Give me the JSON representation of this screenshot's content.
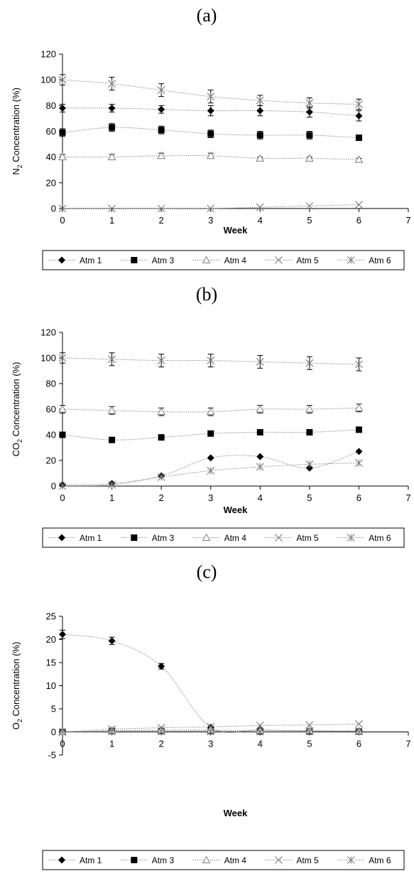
{
  "chart_data": [
    {
      "type": "line",
      "title": "(a)",
      "xlabel": "Week",
      "ylabel_parts": [
        "N",
        "2",
        " Concentration (%)"
      ],
      "xlim": [
        0,
        7
      ],
      "ylim": [
        0,
        120
      ],
      "xticks": [
        0,
        1,
        2,
        3,
        4,
        5,
        6,
        7
      ],
      "yticks": [
        0,
        20,
        40,
        60,
        80,
        100,
        120
      ],
      "x": [
        0,
        1,
        2,
        3,
        4,
        5,
        6
      ],
      "legend_position": "bottom",
      "series": [
        {
          "name": "Atm 1",
          "marker": "diamond",
          "color": "#000000",
          "values": [
            78,
            78,
            77,
            76,
            76,
            75,
            72
          ],
          "errors": [
            3,
            3,
            3,
            4,
            4,
            4,
            4
          ]
        },
        {
          "name": "Atm 3",
          "marker": "square",
          "color": "#000000",
          "values": [
            59,
            63,
            61,
            58,
            57,
            57,
            55
          ],
          "errors": [
            3,
            3,
            3,
            3,
            3,
            3,
            2
          ]
        },
        {
          "name": "Atm 4",
          "marker": "triangle",
          "color": "#7f7f7f",
          "values": [
            40,
            40,
            41,
            41,
            39,
            39,
            38
          ],
          "errors": [
            2,
            2,
            2,
            2,
            1,
            1,
            1
          ]
        },
        {
          "name": "Atm 5",
          "marker": "x",
          "color": "#7f7f7f",
          "values": [
            0,
            0,
            0,
            0,
            1,
            2,
            3
          ],
          "errors": [
            0,
            0,
            0,
            0,
            0,
            0,
            0
          ]
        },
        {
          "name": "Atm 6",
          "marker": "star",
          "color": "#7f7f7f",
          "values": [
            100,
            97,
            92,
            87,
            84,
            82,
            81
          ],
          "errors": [
            4,
            5,
            5,
            5,
            4,
            4,
            4
          ]
        }
      ]
    },
    {
      "type": "line",
      "title": "(b)",
      "xlabel": "Week",
      "ylabel_parts": [
        "CO",
        "2",
        " Concentration (%)"
      ],
      "xlim": [
        0,
        7
      ],
      "ylim": [
        0,
        120
      ],
      "xticks": [
        0,
        1,
        2,
        3,
        4,
        5,
        6,
        7
      ],
      "yticks": [
        0,
        20,
        40,
        60,
        80,
        100,
        120
      ],
      "x": [
        0,
        1,
        2,
        3,
        4,
        5,
        6
      ],
      "legend_position": "bottom",
      "series": [
        {
          "name": "Atm 1",
          "marker": "diamond",
          "color": "#000000",
          "values": [
            1,
            2,
            8,
            22,
            23,
            14,
            27
          ],
          "errors": [
            0,
            0,
            0,
            0,
            0,
            0,
            0
          ]
        },
        {
          "name": "Atm 3",
          "marker": "square",
          "color": "#000000",
          "values": [
            40,
            36,
            38,
            41,
            42,
            42,
            44
          ],
          "errors": [
            0,
            0,
            0,
            0,
            0,
            0,
            0
          ]
        },
        {
          "name": "Atm 4",
          "marker": "triangle",
          "color": "#7f7f7f",
          "values": [
            60,
            59,
            58,
            58,
            60,
            60,
            61
          ],
          "errors": [
            3,
            3,
            3,
            3,
            3,
            3,
            3
          ]
        },
        {
          "name": "Atm 5",
          "marker": "x",
          "color": "#7f7f7f",
          "values": [
            100,
            99,
            98,
            98,
            97,
            96,
            95
          ],
          "errors": [
            4,
            5,
            5,
            5,
            5,
            5,
            5
          ]
        },
        {
          "name": "Atm 6",
          "marker": "star",
          "color": "#7f7f7f",
          "values": [
            0,
            1,
            7,
            12,
            15,
            17,
            18
          ],
          "errors": [
            0,
            0,
            0,
            0,
            0,
            0,
            0
          ]
        }
      ]
    },
    {
      "type": "line",
      "title": "(c)",
      "xlabel": "Week",
      "ylabel_parts": [
        "O",
        "2",
        " Concentration (%)"
      ],
      "xlim": [
        0,
        7
      ],
      "ylim": [
        -5,
        25
      ],
      "xticks": [
        0,
        1,
        2,
        3,
        4,
        5,
        6,
        7
      ],
      "yticks": [
        -5,
        0,
        5,
        10,
        15,
        20,
        25
      ],
      "x": [
        0,
        1,
        2,
        3,
        4,
        5,
        6
      ],
      "legend_position": "bottom",
      "series": [
        {
          "name": "Atm 1",
          "marker": "diamond",
          "color": "#000000",
          "values": [
            21.1,
            19.7,
            14.2,
            1.0,
            0.5,
            0.2,
            0.2
          ],
          "errors": [
            0.9,
            0.8,
            0.6,
            0,
            0,
            0,
            0
          ]
        },
        {
          "name": "Atm 3",
          "marker": "square",
          "color": "#000000",
          "values": [
            0,
            0.2,
            0.2,
            0.2,
            0.1,
            0.1,
            0.1
          ],
          "errors": [
            0,
            0,
            0,
            0,
            0,
            0,
            0
          ]
        },
        {
          "name": "Atm 4",
          "marker": "triangle",
          "color": "#7f7f7f",
          "values": [
            0,
            0.3,
            0.4,
            0.4,
            0.3,
            0.3,
            0.2
          ],
          "errors": [
            0,
            0,
            0,
            0,
            0,
            0,
            0
          ]
        },
        {
          "name": "Atm 5",
          "marker": "x",
          "color": "#7f7f7f",
          "values": [
            0,
            0.6,
            0.9,
            1.1,
            1.4,
            1.5,
            1.7
          ],
          "errors": [
            0,
            0,
            0,
            0,
            0,
            0,
            0
          ]
        },
        {
          "name": "Atm 6",
          "marker": "star",
          "color": "#7f7f7f",
          "values": [
            0,
            0.1,
            0.1,
            0.1,
            0.1,
            0.1,
            0.1
          ],
          "errors": [
            0,
            0,
            0,
            0,
            0,
            0,
            0
          ]
        }
      ]
    }
  ]
}
